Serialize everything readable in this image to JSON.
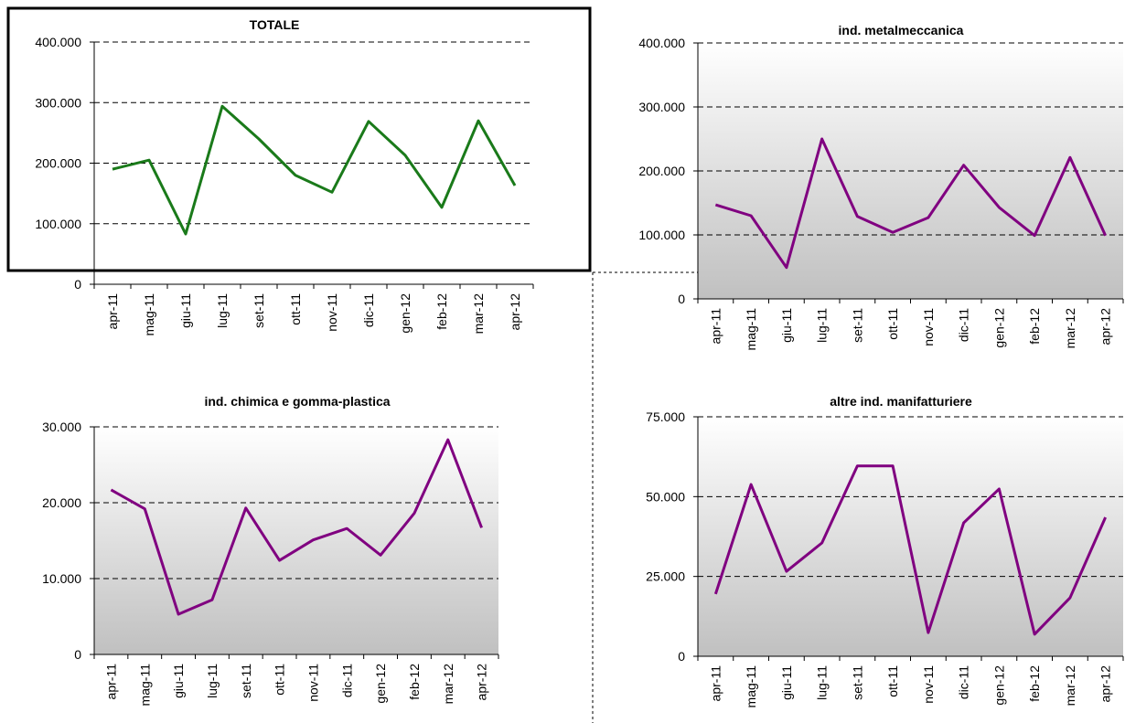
{
  "chart_data": [
    {
      "type": "line",
      "title": "TOTALE",
      "categories": [
        "apr-11",
        "mag-11",
        "giu-11",
        "lug-11",
        "set-11",
        "ott-11",
        "nov-11",
        "dic-11",
        "gen-12",
        "feb-12",
        "mar-12",
        "apr-12"
      ],
      "values": [
        190000,
        205000,
        83000,
        294000,
        240000,
        180000,
        152000,
        269000,
        213000,
        127000,
        270000,
        163000
      ],
      "color": "#1a7a1a",
      "ylim": [
        0,
        400000
      ],
      "yticks": [
        0,
        {
          "value": 100000,
          "label": "100.000"
        },
        {
          "value": 200000,
          "label": "200.000"
        },
        {
          "value": 300000,
          "label": "300.000"
        },
        {
          "value": 400000,
          "label": "400.000"
        }
      ],
      "grid": true
    },
    {
      "type": "line",
      "title": "ind. metalmeccanica",
      "categories": [
        "apr-11",
        "mag-11",
        "giu-11",
        "lug-11",
        "set-11",
        "ott-11",
        "nov-11",
        "dic-11",
        "gen-12",
        "feb-12",
        "mar-12",
        "apr-12"
      ],
      "values": [
        147000,
        130000,
        49000,
        250000,
        129000,
        104000,
        127000,
        209000,
        143000,
        99000,
        221000,
        99000
      ],
      "color": "#800080",
      "ylim": [
        0,
        400000
      ],
      "yticks": [
        0,
        {
          "value": 100000,
          "label": "100.000"
        },
        {
          "value": 200000,
          "label": "200.000"
        },
        {
          "value": 300000,
          "label": "300.000"
        },
        {
          "value": 400000,
          "label": "400.000"
        }
      ],
      "grid": true
    },
    {
      "type": "line",
      "title": "ind. chimica e gomma-plastica",
      "categories": [
        "apr-11",
        "mag-11",
        "giu-11",
        "lug-11",
        "set-11",
        "ott-11",
        "nov-11",
        "dic-11",
        "gen-12",
        "feb-12",
        "mar-12",
        "apr-12"
      ],
      "values": [
        21700,
        19200,
        5300,
        7200,
        19300,
        12400,
        15100,
        16600,
        13100,
        18600,
        28300,
        16700
      ],
      "color": "#800080",
      "ylim": [
        0,
        30000
      ],
      "yticks": [
        0,
        {
          "value": 10000,
          "label": "10.000"
        },
        {
          "value": 20000,
          "label": "20.000"
        },
        {
          "value": 30000,
          "label": "30.000"
        }
      ],
      "grid": true
    },
    {
      "type": "line",
      "title": "altre ind. manifatturiere",
      "categories": [
        "apr-11",
        "mag-11",
        "giu-11",
        "lug-11",
        "set-11",
        "ott-11",
        "nov-11",
        "dic-11",
        "gen-12",
        "feb-12",
        "mar-12",
        "apr-12"
      ],
      "values": [
        19500,
        53800,
        26600,
        35500,
        59600,
        59600,
        7400,
        41800,
        52400,
        6900,
        18300,
        43500
      ],
      "color": "#800080",
      "ylim": [
        0,
        75000
      ],
      "yticks": [
        0,
        {
          "value": 25000,
          "label": "25.000"
        },
        {
          "value": 50000,
          "label": "50.000"
        },
        {
          "value": 75000,
          "label": "75.000"
        }
      ],
      "grid": true
    }
  ]
}
